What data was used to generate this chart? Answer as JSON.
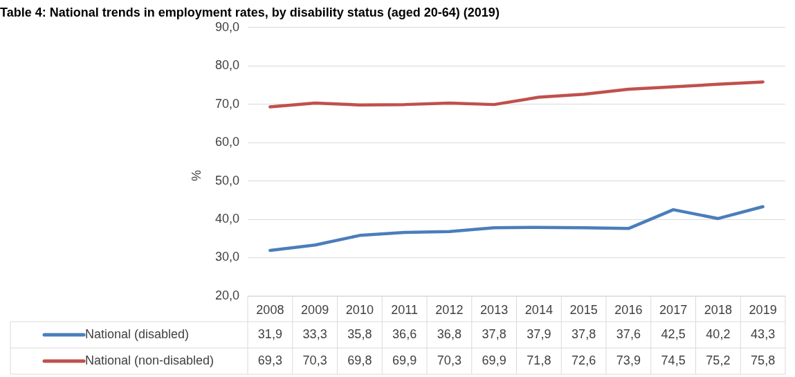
{
  "chart_data": {
    "type": "line",
    "title": "Table 4: National trends in employment rates, by disability status (aged 20-64) (2019)",
    "ylabel": "%",
    "categories": [
      "2008",
      "2009",
      "2010",
      "2011",
      "2012",
      "2013",
      "2014",
      "2015",
      "2016",
      "2017",
      "2018",
      "2019"
    ],
    "series": [
      {
        "name": "National (disabled)",
        "color": "#4a7ebb",
        "values": [
          31.9,
          33.3,
          35.8,
          36.6,
          36.8,
          37.8,
          37.9,
          37.8,
          37.6,
          42.5,
          40.2,
          43.3
        ],
        "value_labels": [
          "31,9",
          "33,3",
          "35,8",
          "36,6",
          "36,8",
          "37,8",
          "37,9",
          "37,8",
          "37,6",
          "42,5",
          "40,2",
          "43,3"
        ]
      },
      {
        "name": "National (non-disabled)",
        "color": "#c0504d",
        "values": [
          69.3,
          70.3,
          69.8,
          69.9,
          70.3,
          69.9,
          71.8,
          72.6,
          73.9,
          74.5,
          75.2,
          75.8
        ],
        "value_labels": [
          "69,3",
          "70,3",
          "69,8",
          "69,9",
          "70,3",
          "69,9",
          "71,8",
          "72,6",
          "73,9",
          "74,5",
          "75,2",
          "75,8"
        ]
      }
    ],
    "ylim": [
      20,
      90
    ],
    "yticks": [
      {
        "value": 20,
        "label": "20,0"
      },
      {
        "value": 30,
        "label": "30,0"
      },
      {
        "value": 40,
        "label": "40,0"
      },
      {
        "value": 50,
        "label": "50,0"
      },
      {
        "value": 60,
        "label": "60,0"
      },
      {
        "value": 70,
        "label": "70,0"
      },
      {
        "value": 80,
        "label": "80,0"
      },
      {
        "value": 90,
        "label": "90,0"
      }
    ],
    "grid": "y",
    "legend": "bottom",
    "marker": "none",
    "line_style": "solid"
  }
}
